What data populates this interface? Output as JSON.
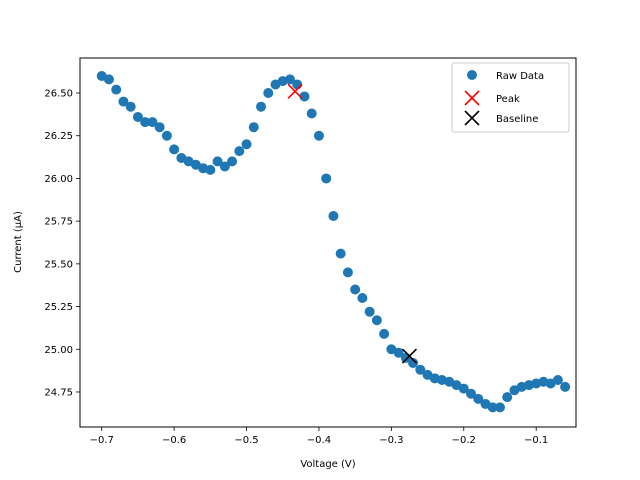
{
  "chart_data": {
    "type": "scatter",
    "title": "",
    "xlabel": "Voltage (V)",
    "ylabel": "Current (µA)",
    "xlim": [
      -0.73,
      -0.045
    ],
    "ylim": [
      24.545,
      26.705
    ],
    "grid": false,
    "legend_placement": "top-right",
    "xticks": [
      -0.7,
      -0.6,
      -0.5,
      -0.4,
      -0.3,
      -0.2,
      -0.1
    ],
    "xtick_labels": [
      "−0.7",
      "−0.6",
      "−0.5",
      "−0.4",
      "−0.3",
      "−0.2",
      "−0.1"
    ],
    "yticks": [
      24.75,
      25.0,
      25.25,
      25.5,
      25.75,
      26.0,
      26.25,
      26.5
    ],
    "ytick_labels": [
      "24.75",
      "25.00",
      "25.25",
      "25.50",
      "25.75",
      "26.00",
      "26.25",
      "26.50"
    ],
    "series": [
      {
        "name": "Raw Data",
        "color": "#1f77b4",
        "marker": "circle",
        "x": [
          -0.7,
          -0.69,
          -0.68,
          -0.67,
          -0.66,
          -0.65,
          -0.64,
          -0.63,
          -0.62,
          -0.61,
          -0.6,
          -0.59,
          -0.58,
          -0.57,
          -0.56,
          -0.55,
          -0.54,
          -0.53,
          -0.52,
          -0.51,
          -0.5,
          -0.49,
          -0.48,
          -0.47,
          -0.46,
          -0.45,
          -0.44,
          -0.43,
          -0.42,
          -0.41,
          -0.4,
          -0.39,
          -0.38,
          -0.37,
          -0.36,
          -0.35,
          -0.34,
          -0.33,
          -0.32,
          -0.31,
          -0.3,
          -0.29,
          -0.28,
          -0.27,
          -0.26,
          -0.25,
          -0.24,
          -0.23,
          -0.22,
          -0.21,
          -0.2,
          -0.19,
          -0.18,
          -0.17,
          -0.16,
          -0.15,
          -0.14,
          -0.13,
          -0.12,
          -0.11,
          -0.1,
          -0.09,
          -0.08,
          -0.07,
          -0.06
        ],
        "y": [
          26.6,
          26.58,
          26.52,
          26.45,
          26.42,
          26.36,
          26.33,
          26.33,
          26.3,
          26.25,
          26.17,
          26.12,
          26.1,
          26.08,
          26.06,
          26.05,
          26.1,
          26.07,
          26.1,
          26.16,
          26.2,
          26.3,
          26.42,
          26.5,
          26.55,
          26.57,
          26.58,
          26.55,
          26.48,
          26.38,
          26.25,
          26.0,
          25.78,
          25.56,
          25.45,
          25.35,
          25.3,
          25.22,
          25.17,
          25.09,
          25.0,
          24.98,
          24.95,
          24.92,
          24.88,
          24.85,
          24.83,
          24.82,
          24.81,
          24.79,
          24.77,
          24.74,
          24.71,
          24.68,
          24.66,
          24.66,
          24.72,
          24.76,
          24.78,
          24.79,
          24.8,
          24.81,
          24.8,
          24.82,
          24.78
        ]
      },
      {
        "name": "Peak",
        "color": "#ff0000",
        "marker": "x",
        "x": [
          -0.433
        ],
        "y": [
          26.51
        ]
      },
      {
        "name": "Baseline",
        "color": "#000000",
        "marker": "x",
        "x": [
          -0.275
        ],
        "y": [
          24.96
        ]
      }
    ]
  }
}
